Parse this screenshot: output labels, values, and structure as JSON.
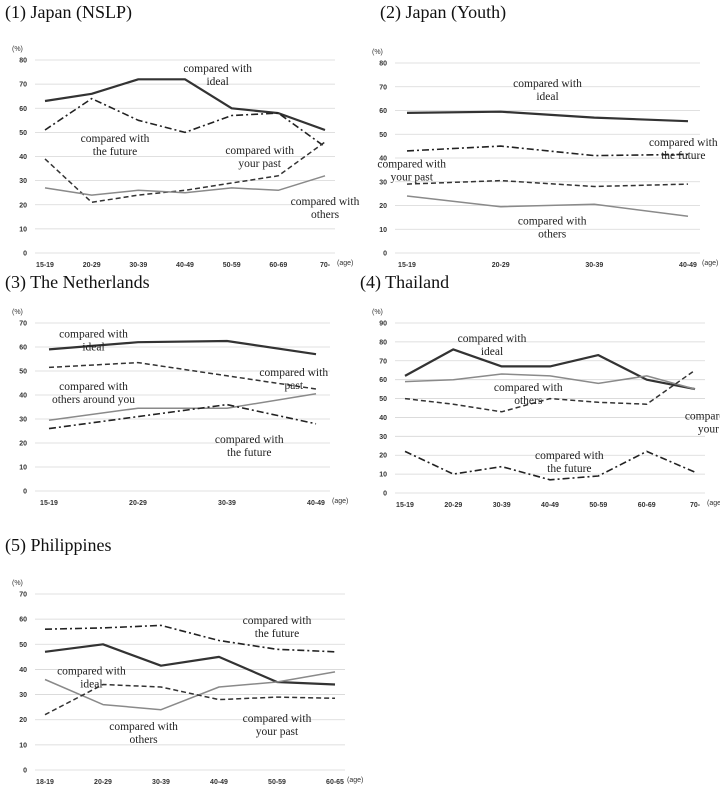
{
  "colors": {
    "ideal": "#333333",
    "future": "#222222",
    "past": "#333333",
    "others": "#8a8a8a",
    "grid": "#d6d6d6"
  },
  "chart_data": [
    {
      "type": "line",
      "title": "(1) Japan (NSLP)",
      "ylabel": "(%)",
      "xlabel": "(age)",
      "ylim": [
        0,
        80
      ],
      "yticks": [
        0,
        10,
        20,
        30,
        40,
        50,
        60,
        70,
        80
      ],
      "categories": [
        "15-19",
        "20-29",
        "30-39",
        "40-49",
        "50-59",
        "60-69",
        "70-"
      ],
      "grid": true,
      "series": [
        {
          "key": "ideal",
          "values": [
            63,
            66,
            72,
            72,
            60,
            58,
            51
          ]
        },
        {
          "key": "future",
          "values": [
            51,
            64,
            55,
            50,
            57,
            58,
            44
          ]
        },
        {
          "key": "past",
          "values": [
            39,
            21,
            24,
            26,
            29,
            32,
            46
          ]
        },
        {
          "key": "others",
          "values": [
            27,
            24,
            26,
            25,
            27,
            26,
            32
          ]
        }
      ],
      "annotations": [
        {
          "lines": [
            "compared with",
            "ideal"
          ],
          "x": 3.7,
          "y": 75
        },
        {
          "lines": [
            "compared with",
            "the future"
          ],
          "x": 1.5,
          "y": 46
        },
        {
          "lines": [
            "compared with",
            "your past"
          ],
          "x": 4.6,
          "y": 41
        },
        {
          "lines": [
            "compared with",
            "others"
          ],
          "x": 6.0,
          "y": 20
        }
      ]
    },
    {
      "type": "line",
      "title": "(2) Japan (Youth)",
      "ylabel": "(%)",
      "xlabel": "(age)",
      "ylim": [
        0,
        80
      ],
      "yticks": [
        0,
        10,
        20,
        30,
        40,
        50,
        60,
        70,
        80
      ],
      "categories": [
        "15-19",
        "20-29",
        "30-39",
        "40-49"
      ],
      "grid": true,
      "series": [
        {
          "key": "ideal",
          "values": [
            59,
            59.5,
            57,
            55.5
          ]
        },
        {
          "key": "future",
          "values": [
            43,
            45,
            41,
            41.5
          ]
        },
        {
          "key": "past",
          "values": [
            29,
            30.5,
            28,
            29
          ]
        },
        {
          "key": "others",
          "values": [
            24,
            19.5,
            20.5,
            15.5
          ]
        }
      ],
      "annotations": [
        {
          "lines": [
            "compared with",
            "ideal"
          ],
          "x": 1.5,
          "y": 70
        },
        {
          "lines": [
            "compared with",
            "your past"
          ],
          "x": 0.05,
          "y": 36
        },
        {
          "lines": [
            "compared with",
            "the future"
          ],
          "x": 2.95,
          "y": 45
        },
        {
          "lines": [
            "compared with",
            "others"
          ],
          "x": 1.55,
          "y": 12
        }
      ]
    },
    {
      "type": "line",
      "title": "(3) The Netherlands",
      "ylabel": "(%)",
      "xlabel": "(age)",
      "ylim": [
        0,
        70
      ],
      "yticks": [
        0,
        10,
        20,
        30,
        40,
        50,
        60,
        70
      ],
      "categories": [
        "15-19",
        "20-29",
        "30-39",
        "40-49"
      ],
      "grid": true,
      "series": [
        {
          "key": "ideal",
          "values": [
            59,
            62,
            62.5,
            57
          ]
        },
        {
          "key": "past",
          "values": [
            51.5,
            53.5,
            48,
            42.5
          ]
        },
        {
          "key": "others",
          "values": [
            29.5,
            34.5,
            34.5,
            40.5
          ]
        },
        {
          "key": "future",
          "values": [
            26,
            31,
            36,
            28
          ]
        }
      ],
      "annotations": [
        {
          "lines": [
            "compared with",
            "ideal"
          ],
          "x": 0.5,
          "y": 64
        },
        {
          "lines": [
            "compared with",
            "past"
          ],
          "x": 2.75,
          "y": 48
        },
        {
          "lines": [
            "compared with",
            "others around you"
          ],
          "x": 0.5,
          "y": 42
        },
        {
          "lines": [
            "compared with",
            "the future"
          ],
          "x": 2.25,
          "y": 20
        }
      ]
    },
    {
      "type": "line",
      "title": "(4) Thailand",
      "ylabel": "(%)",
      "xlabel": "(age)",
      "ylim": [
        0,
        90
      ],
      "yticks": [
        0,
        10,
        20,
        30,
        40,
        50,
        60,
        70,
        80,
        90
      ],
      "categories": [
        "15-19",
        "20-29",
        "30-39",
        "40-49",
        "50-59",
        "60-69",
        "70-"
      ],
      "grid": true,
      "series": [
        {
          "key": "ideal",
          "values": [
            62,
            76,
            67,
            67,
            73,
            60,
            55
          ]
        },
        {
          "key": "others",
          "values": [
            59,
            60,
            63,
            62,
            58,
            62,
            55
          ]
        },
        {
          "key": "past",
          "values": [
            50,
            47,
            43,
            50,
            48,
            47,
            65
          ]
        },
        {
          "key": "future",
          "values": [
            22,
            10,
            14,
            7,
            9,
            22,
            11
          ]
        }
      ],
      "annotations": [
        {
          "lines": [
            "compared with",
            "ideal"
          ],
          "x": 1.8,
          "y": 80
        },
        {
          "lines": [
            "compared with",
            "others"
          ],
          "x": 2.55,
          "y": 54
        },
        {
          "lines": [
            "compared with",
            "your past"
          ],
          "x": 6.5,
          "y": 39
        },
        {
          "lines": [
            "compared with",
            "the future"
          ],
          "x": 3.4,
          "y": 18
        }
      ]
    },
    {
      "type": "line",
      "title": "(5) Philippines",
      "ylabel": "(%)",
      "xlabel": "(age)",
      "ylim": [
        0,
        70
      ],
      "yticks": [
        0,
        10,
        20,
        30,
        40,
        50,
        60,
        70
      ],
      "categories": [
        "18-19",
        "20-29",
        "30-39",
        "40-49",
        "50-59",
        "60-65"
      ],
      "grid": true,
      "series": [
        {
          "key": "future",
          "values": [
            56,
            56.5,
            57.5,
            51.5,
            48,
            47
          ]
        },
        {
          "key": "ideal",
          "values": [
            47,
            50,
            41.5,
            45,
            35,
            34
          ]
        },
        {
          "key": "others",
          "values": [
            36,
            26,
            24,
            33,
            35,
            39
          ]
        },
        {
          "key": "past",
          "values": [
            22,
            34,
            33,
            28,
            29,
            28.5
          ]
        }
      ],
      "annotations": [
        {
          "lines": [
            "compared with",
            "the future"
          ],
          "x": 4.0,
          "y": 58
        },
        {
          "lines": [
            "compared with",
            "ideal"
          ],
          "x": 0.8,
          "y": 38
        },
        {
          "lines": [
            "compared with",
            "others"
          ],
          "x": 1.7,
          "y": 16
        },
        {
          "lines": [
            "compared with",
            "your past"
          ],
          "x": 4.0,
          "y": 19
        }
      ]
    }
  ]
}
